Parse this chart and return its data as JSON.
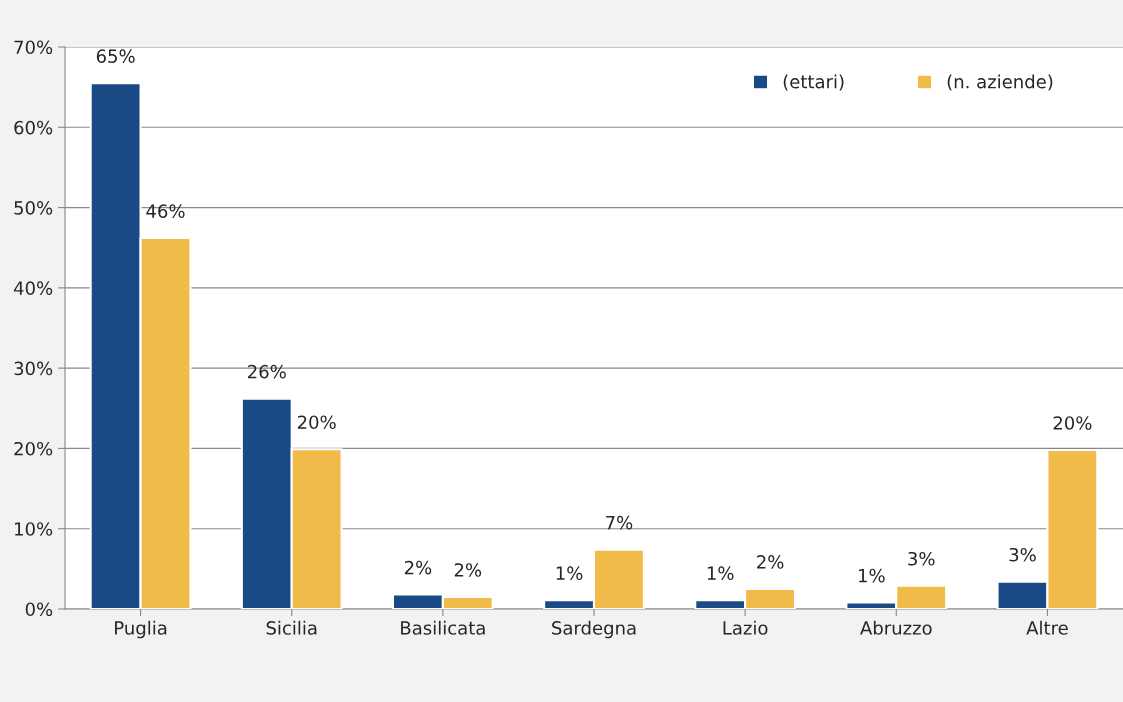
{
  "chart_data": {
    "type": "bar",
    "categories": [
      "Puglia",
      "Sicilia",
      "Basilicata",
      "Sardegna",
      "Lazio",
      "Abruzzo",
      "Altre"
    ],
    "series": [
      {
        "name": "(ettari)",
        "color": "#1a4a85",
        "values": [
          65.5,
          26.2,
          1.8,
          1.1,
          1.1,
          0.8,
          3.4
        ],
        "value_labels": [
          "65%",
          "26%",
          "2%",
          "1%",
          "1%",
          "1%",
          "3%"
        ]
      },
      {
        "name": "(n. aziende)",
        "color": "#f0bb48",
        "values": [
          46.2,
          19.9,
          1.5,
          7.4,
          2.5,
          2.9,
          19.8
        ],
        "value_labels": [
          "46%",
          "20%",
          "2%",
          "7%",
          "2%",
          "3%",
          "20%"
        ]
      }
    ],
    "ylim": [
      0,
      70
    ],
    "yticks": [
      {
        "value": 0,
        "label": "0%"
      },
      {
        "value": 10,
        "label": "10%"
      },
      {
        "value": 20,
        "label": "20%"
      },
      {
        "value": 30,
        "label": "30%"
      },
      {
        "value": 40,
        "label": "40%"
      },
      {
        "value": 50,
        "label": "50%"
      },
      {
        "value": 60,
        "label": "60%"
      },
      {
        "value": 70,
        "label": "70%"
      }
    ],
    "grid": "y",
    "legend": "top right"
  }
}
